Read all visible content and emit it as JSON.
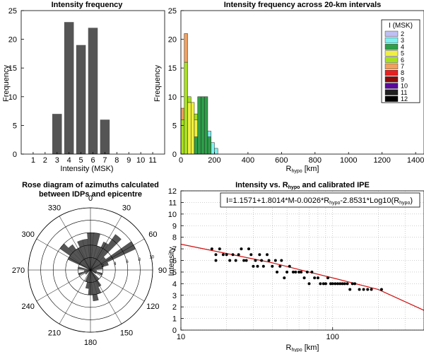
{
  "chart_data": [
    {
      "type": "bar",
      "title": "Intensity frequency",
      "xlabel": "Intensity (MSK)",
      "ylabel": "Frequency",
      "categories": [
        "1",
        "2",
        "3",
        "4",
        "5",
        "6",
        "7",
        "8",
        "9",
        "10",
        "11"
      ],
      "values": [
        0,
        0,
        7,
        23,
        19,
        22,
        6,
        0,
        0,
        0,
        0
      ],
      "ylim": [
        0,
        25
      ],
      "yticks": [
        0,
        5,
        10,
        15,
        20,
        25
      ],
      "colors": {
        "bar": "#555555"
      }
    },
    {
      "type": "bar",
      "title": "Intensity frequency across 20-km intervals",
      "xlabel_main": "R",
      "xlabel_sub": "hypo",
      "xlabel_unit": " [km]",
      "ylabel": "Frequency",
      "xlim": [
        0,
        1450
      ],
      "ylim": [
        0,
        25
      ],
      "xticks": [
        0,
        200,
        400,
        600,
        800,
        1000,
        1200,
        1400
      ],
      "yticks": [
        0,
        5,
        10,
        15,
        20,
        25
      ],
      "bin_width": 20,
      "legend": {
        "title": "I (MSK)",
        "placement": "top-right",
        "entries": [
          {
            "label": "2",
            "color": "#bfbff5"
          },
          {
            "label": "3",
            "color": "#7ff0ee"
          },
          {
            "label": "4",
            "color": "#2e9e4a"
          },
          {
            "label": "5",
            "color": "#f0f040"
          },
          {
            "label": "6",
            "color": "#a8e020"
          },
          {
            "label": "7",
            "color": "#f0a060"
          },
          {
            "label": "8",
            "color": "#e82020"
          },
          {
            "label": "9",
            "color": "#8a0a0a"
          },
          {
            "label": "10",
            "color": "#5a0a9a"
          },
          {
            "label": "11",
            "color": "#202020"
          },
          {
            "label": "12",
            "color": "#000000"
          }
        ]
      },
      "bins": [
        {
          "x": 0,
          "series": [
            {
              "i": "6",
              "v": 6
            },
            {
              "i": "7",
              "v": 2
            }
          ]
        },
        {
          "x": 20,
          "series": [
            {
              "i": "6",
              "v": 16
            },
            {
              "i": "7",
              "v": 5
            }
          ]
        },
        {
          "x": 40,
          "series": [
            {
              "i": "5",
              "v": 9
            },
            {
              "i": "6",
              "v": 1
            }
          ]
        },
        {
          "x": 60,
          "series": [
            {
              "i": "5",
              "v": 9
            }
          ]
        },
        {
          "x": 80,
          "series": [
            {
              "i": "4",
              "v": 3
            },
            {
              "i": "5",
              "v": 3
            },
            {
              "i": "6",
              "v": 1
            }
          ]
        },
        {
          "x": 100,
          "series": [
            {
              "i": "4",
              "v": 10
            }
          ]
        },
        {
          "x": 120,
          "series": [
            {
              "i": "4",
              "v": 10
            }
          ]
        },
        {
          "x": 140,
          "series": [
            {
              "i": "4",
              "v": 10
            }
          ]
        },
        {
          "x": 160,
          "series": [
            {
              "i": "4",
              "v": 3
            },
            {
              "i": "3",
              "v": 1
            }
          ]
        },
        {
          "x": 180,
          "series": [
            {
              "i": "3",
              "v": 2
            }
          ]
        },
        {
          "x": 200,
          "series": [
            {
              "i": "3",
              "v": 1
            }
          ]
        }
      ]
    },
    {
      "type": "rose",
      "title_line1": "Rose diagram of azimuths calculated",
      "title_line2": "between  IDPs and epicentre",
      "angle_labels": [
        "0",
        "30",
        "60",
        "90",
        "120",
        "150",
        "180",
        "210",
        "240",
        "270",
        "300",
        "330"
      ],
      "radial_labels": [
        "2",
        "4",
        "6",
        "8",
        "10"
      ],
      "rmax": 10,
      "sectors": [
        {
          "az": 0,
          "r": 6
        },
        {
          "az": 10,
          "r": 6
        },
        {
          "az": 20,
          "r": 4
        },
        {
          "az": 30,
          "r": 5
        },
        {
          "az": 40,
          "r": 7
        },
        {
          "az": 50,
          "r": 3
        },
        {
          "az": 60,
          "r": 8
        },
        {
          "az": 70,
          "r": 3
        },
        {
          "az": 80,
          "r": 2
        },
        {
          "az": 100,
          "r": 1
        },
        {
          "az": 110,
          "r": 2
        },
        {
          "az": 120,
          "r": 1
        },
        {
          "az": 140,
          "r": 2
        },
        {
          "az": 150,
          "r": 3
        },
        {
          "az": 160,
          "r": 4
        },
        {
          "az": 170,
          "r": 5
        },
        {
          "az": 180,
          "r": 4
        },
        {
          "az": 190,
          "r": 3
        },
        {
          "az": 200,
          "r": 2
        },
        {
          "az": 230,
          "r": 1
        },
        {
          "az": 250,
          "r": 2
        },
        {
          "az": 260,
          "r": 1
        },
        {
          "az": 280,
          "r": 2
        },
        {
          "az": 300,
          "r": 4
        },
        {
          "az": 310,
          "r": 6
        },
        {
          "az": 320,
          "r": 5
        },
        {
          "az": 330,
          "r": 4
        },
        {
          "az": 340,
          "r": 5
        },
        {
          "az": 350,
          "r": 5
        }
      ],
      "colors": {
        "sector": "#555555"
      }
    },
    {
      "type": "scatter",
      "title_main": "Intensity vs. R",
      "title_sub": "hypo",
      "title_tail": " and calibrated IPE",
      "xlabel_main": "R",
      "xlabel_sub": "hypo",
      "xlabel_unit": " [km]",
      "ylabel": "Intensity",
      "x_scale": "log",
      "xlim": [
        10,
        400
      ],
      "ylim": [
        0,
        12
      ],
      "xticks": [
        10,
        100
      ],
      "yticks": [
        0,
        1,
        2,
        3,
        4,
        5,
        6,
        7,
        8,
        9,
        10,
        11,
        12
      ],
      "grid": true,
      "equation_parts": [
        "I=1.1571+1.8014*M-0.0026*R",
        "hypo",
        "-2.8531*Log10(R",
        "hypo",
        ")"
      ],
      "points": [
        [
          16,
          7.0
        ],
        [
          17,
          6.5
        ],
        [
          17,
          6.0
        ],
        [
          18,
          7.0
        ],
        [
          19,
          6.5
        ],
        [
          20,
          6.5
        ],
        [
          21,
          6.0
        ],
        [
          22,
          6.5
        ],
        [
          23,
          6.0
        ],
        [
          24,
          6.5
        ],
        [
          25,
          7.0
        ],
        [
          26,
          6.0
        ],
        [
          27,
          6.0
        ],
        [
          28,
          7.0
        ],
        [
          29,
          6.5
        ],
        [
          30,
          5.5
        ],
        [
          31,
          6.0
        ],
        [
          32,
          5.5
        ],
        [
          33,
          6.5
        ],
        [
          34,
          6.0
        ],
        [
          35,
          5.5
        ],
        [
          37,
          6.5
        ],
        [
          38,
          6.0
        ],
        [
          40,
          5.5
        ],
        [
          42,
          6.0
        ],
        [
          43,
          5.0
        ],
        [
          45,
          5.5
        ],
        [
          46,
          6.0
        ],
        [
          48,
          4.5
        ],
        [
          50,
          5.0
        ],
        [
          52,
          5.5
        ],
        [
          55,
          5.0
        ],
        [
          57,
          5.0
        ],
        [
          60,
          5.0
        ],
        [
          62,
          5.0
        ],
        [
          65,
          4.5
        ],
        [
          68,
          5.0
        ],
        [
          70,
          4.0
        ],
        [
          73,
          5.0
        ],
        [
          76,
          4.5
        ],
        [
          80,
          4.5
        ],
        [
          83,
          4.0
        ],
        [
          87,
          4.0
        ],
        [
          90,
          4.0
        ],
        [
          93,
          4.5
        ],
        [
          97,
          4.0
        ],
        [
          100,
          4.0
        ],
        [
          104,
          4.0
        ],
        [
          108,
          4.0
        ],
        [
          112,
          4.0
        ],
        [
          116,
          4.0
        ],
        [
          120,
          4.0
        ],
        [
          125,
          4.0
        ],
        [
          130,
          3.5
        ],
        [
          135,
          4.0
        ],
        [
          140,
          4.0
        ],
        [
          150,
          3.5
        ],
        [
          160,
          3.5
        ],
        [
          170,
          3.5
        ],
        [
          180,
          3.5
        ],
        [
          210,
          3.5
        ]
      ],
      "fit_curve": [
        [
          10,
          7.4
        ],
        [
          20,
          6.6
        ],
        [
          40,
          5.8
        ],
        [
          70,
          5.0
        ],
        [
          100,
          4.5
        ],
        [
          200,
          3.5
        ],
        [
          400,
          1.7
        ]
      ],
      "colors": {
        "points": "#000000",
        "fit": "#d01010"
      }
    }
  ]
}
